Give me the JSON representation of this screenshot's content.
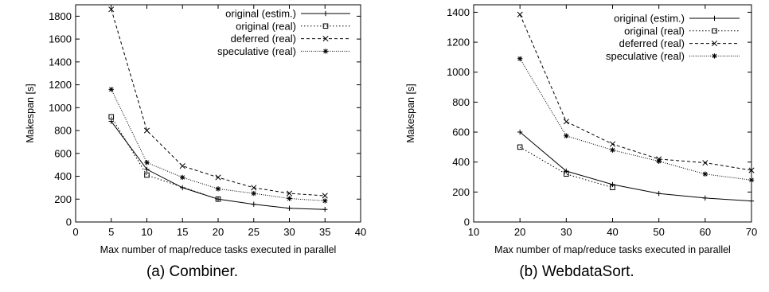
{
  "chart_data": [
    {
      "type": "line",
      "caption": "(a) Combiner.",
      "xlabel": "Max number of map/reduce tasks executed in parallel",
      "ylabel": "Makespan [s]",
      "xlim": [
        0,
        40
      ],
      "ylim": [
        0,
        1900
      ],
      "xticks": [
        0,
        5,
        10,
        15,
        20,
        25,
        30,
        35,
        40
      ],
      "yticks": [
        0,
        200,
        400,
        600,
        800,
        1000,
        1200,
        1400,
        1600,
        1800
      ],
      "grid": false,
      "legend_position": "top-right",
      "series": [
        {
          "name": "original (estim.)",
          "marker": "plus",
          "dash": "solid",
          "x": [
            5,
            10,
            15,
            20,
            25,
            30,
            35
          ],
          "values": [
            880,
            460,
            300,
            200,
            155,
            120,
            110
          ]
        },
        {
          "name": "original (real)",
          "marker": "square",
          "dash": "dotted",
          "x": [
            5,
            10,
            20
          ],
          "values": [
            920,
            410,
            200
          ]
        },
        {
          "name": "deferred (real)",
          "marker": "cross",
          "dash": "dashed",
          "x": [
            5,
            10,
            15,
            20,
            25,
            30,
            35
          ],
          "values": [
            1860,
            800,
            490,
            390,
            300,
            250,
            230
          ]
        },
        {
          "name": "speculative (real)",
          "marker": "star",
          "dash": "densedot",
          "x": [
            5,
            10,
            15,
            20,
            25,
            30,
            35
          ],
          "values": [
            1160,
            520,
            390,
            290,
            250,
            205,
            185
          ]
        }
      ]
    },
    {
      "type": "line",
      "caption": "(b) WebdataSort.",
      "xlabel": "Max number of map/reduce tasks executed in parallel",
      "ylabel": "Makespan [s]",
      "xlim": [
        10,
        70
      ],
      "ylim": [
        0,
        1450
      ],
      "xticks": [
        10,
        20,
        30,
        40,
        50,
        60,
        70
      ],
      "yticks": [
        0,
        200,
        400,
        600,
        800,
        1000,
        1200,
        1400
      ],
      "grid": false,
      "legend_position": "top-right",
      "series": [
        {
          "name": "original (estim.)",
          "marker": "plus",
          "dash": "solid",
          "x": [
            20,
            30,
            40,
            50,
            60,
            70
          ],
          "values": [
            600,
            340,
            250,
            190,
            160,
            140
          ]
        },
        {
          "name": "original (real)",
          "marker": "square",
          "dash": "dotted",
          "x": [
            20,
            30,
            40
          ],
          "values": [
            500,
            320,
            230
          ]
        },
        {
          "name": "deferred (real)",
          "marker": "cross",
          "dash": "dashed",
          "x": [
            20,
            30,
            40,
            50,
            60,
            70
          ],
          "values": [
            1385,
            670,
            520,
            420,
            395,
            345
          ]
        },
        {
          "name": "speculative (real)",
          "marker": "star",
          "dash": "densedot",
          "x": [
            20,
            30,
            40,
            50,
            60,
            70
          ],
          "values": [
            1090,
            575,
            480,
            405,
            320,
            280
          ]
        }
      ]
    }
  ]
}
